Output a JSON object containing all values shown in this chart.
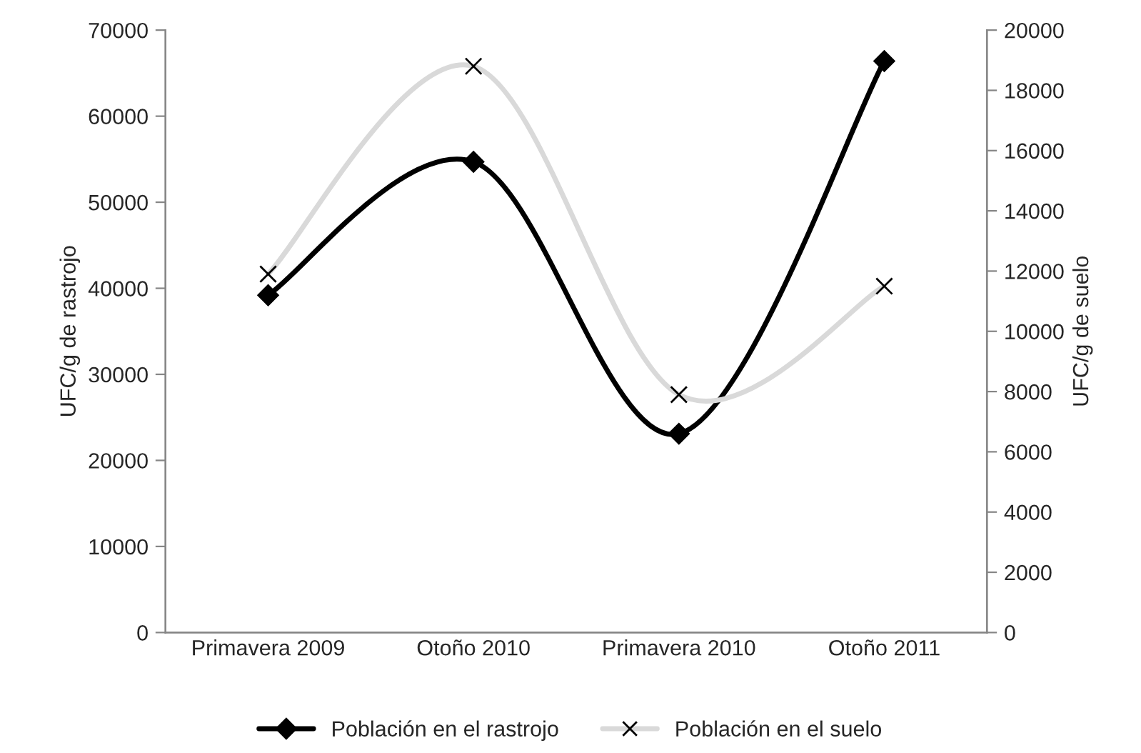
{
  "chart_data": {
    "type": "line",
    "categories": [
      "Primavera 2009",
      "Otoño 2010",
      "Primavera 2010",
      "Otoño 2011"
    ],
    "series": [
      {
        "name": "Población en el rastrojo",
        "color": "#000000",
        "marker": "diamond",
        "values": [
          39200,
          54700,
          23100,
          66400
        ]
      },
      {
        "name": "Población en el suelo",
        "color": "#d9d9d9",
        "marker": "cross",
        "axis": "y2",
        "values": [
          11900,
          18800,
          7900,
          11500
        ]
      }
    ],
    "ylabel": "UFC/g de rastrojo",
    "y2label": "UFC/g de suelo",
    "ylim": [
      0,
      70000
    ],
    "yticks": [
      0,
      10000,
      20000,
      30000,
      40000,
      50000,
      60000,
      70000
    ],
    "y2lim": [
      0,
      20000
    ],
    "y2ticks": [
      0,
      2000,
      4000,
      6000,
      8000,
      10000,
      12000,
      14000,
      16000,
      18000,
      20000
    ],
    "grid": false,
    "legend": "bottom"
  }
}
